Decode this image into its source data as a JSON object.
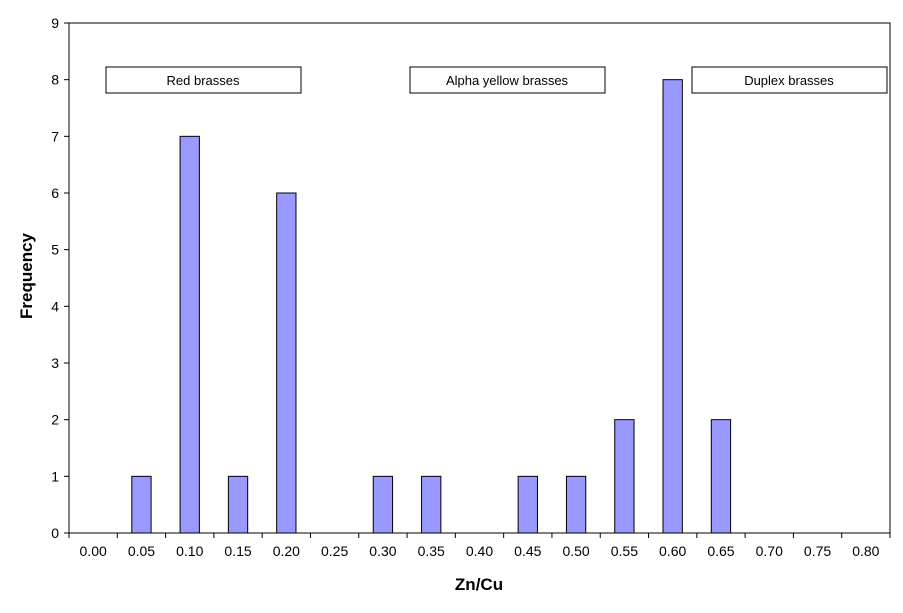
{
  "chart_data": {
    "type": "bar",
    "xlabel": "Zn/Cu",
    "ylabel": "Frequency",
    "categories": [
      "0.00",
      "0.05",
      "0.10",
      "0.15",
      "0.20",
      "0.25",
      "0.30",
      "0.35",
      "0.40",
      "0.45",
      "0.50",
      "0.55",
      "0.60",
      "0.65",
      "0.70",
      "0.75",
      "0.80"
    ],
    "values": [
      0,
      1,
      7,
      1,
      6,
      0,
      1,
      1,
      0,
      1,
      1,
      2,
      8,
      2,
      0,
      0,
      0
    ],
    "ylim": [
      0,
      9
    ],
    "yticks": [
      "0",
      "1",
      "2",
      "3",
      "4",
      "5",
      "6",
      "7",
      "8",
      "9"
    ],
    "grid": false,
    "bar_color": "#9999ff",
    "regions": [
      {
        "label": "Red brasses"
      },
      {
        "label": "Alpha yellow brasses"
      },
      {
        "label": "Duplex brasses"
      }
    ]
  }
}
